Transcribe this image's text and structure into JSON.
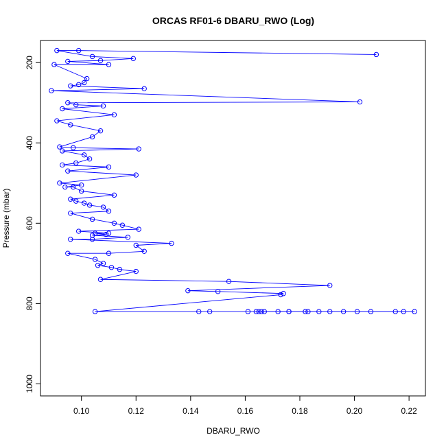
{
  "chart_data": {
    "type": "scatter",
    "title": "ORCAS RF01-6 DBARU_RWO (Log)",
    "xlabel": "DBARU_RWO",
    "ylabel": "Pressure (mbar)",
    "xlim": [
      0.085,
      0.226
    ],
    "ylim": [
      1030,
      145
    ],
    "y_reversed": true,
    "x_ticks": [
      0.1,
      0.12,
      0.14,
      0.16,
      0.18,
      0.2,
      0.22
    ],
    "x_tick_labels": [
      "0.10",
      "0.12",
      "0.14",
      "0.16",
      "0.18",
      "0.20",
      "0.22"
    ],
    "y_ticks": [
      200,
      400,
      600,
      800,
      1000
    ],
    "y_tick_labels": [
      "200",
      "400",
      "600",
      "800",
      "1000"
    ],
    "grid": false,
    "legend": "none",
    "style": "points-and-lines",
    "series": [
      {
        "color": "#0000ff",
        "x": [
          0.208,
          0.099,
          0.091,
          0.104,
          0.119,
          0.107,
          0.095,
          0.11,
          0.09,
          0.102,
          0.101,
          0.099,
          0.096,
          0.123,
          0.089,
          0.202,
          0.095,
          0.098,
          0.108,
          0.093,
          0.112,
          0.091,
          0.096,
          0.107,
          0.104,
          0.092,
          0.097,
          0.121,
          0.093,
          0.101,
          0.103,
          0.098,
          0.093,
          0.11,
          0.095,
          0.12,
          0.092,
          0.1,
          0.094,
          0.097,
          0.1,
          0.112,
          0.096,
          0.098,
          0.101,
          0.103,
          0.108,
          0.11,
          0.096,
          0.104,
          0.112,
          0.115,
          0.121,
          0.099,
          0.11,
          0.105,
          0.109,
          0.104,
          0.117,
          0.104,
          0.096,
          0.133,
          0.12,
          0.123,
          0.11,
          0.095,
          0.105,
          0.108,
          0.106,
          0.111,
          0.114,
          0.12,
          0.107,
          0.154,
          0.191,
          0.139,
          0.15,
          0.174,
          0.173,
          0.105,
          0.143,
          0.147,
          0.161,
          0.165,
          0.167,
          0.176,
          0.172,
          0.182,
          0.183,
          0.187,
          0.191,
          0.196,
          0.201,
          0.206,
          0.215,
          0.218,
          0.222,
          0.164,
          0.166,
          0.176
        ],
        "y": [
          180,
          170,
          170,
          185,
          190,
          195,
          197,
          205,
          205,
          240,
          250,
          255,
          258,
          265,
          270,
          298,
          300,
          305,
          308,
          315,
          330,
          345,
          355,
          370,
          385,
          410,
          412,
          415,
          420,
          430,
          440,
          450,
          455,
          460,
          470,
          480,
          500,
          505,
          510,
          510,
          520,
          530,
          540,
          545,
          550,
          555,
          560,
          570,
          575,
          590,
          600,
          605,
          615,
          620,
          625,
          625,
          628,
          630,
          635,
          640,
          640,
          650,
          655,
          670,
          675,
          675,
          690,
          700,
          705,
          710,
          715,
          720,
          740,
          745,
          755,
          768,
          770,
          775,
          778,
          820,
          820,
          820,
          820,
          820,
          820,
          820,
          820,
          820,
          820,
          820,
          820,
          820,
          820,
          820,
          820,
          820,
          820,
          820,
          820,
          820
        ]
      }
    ]
  }
}
